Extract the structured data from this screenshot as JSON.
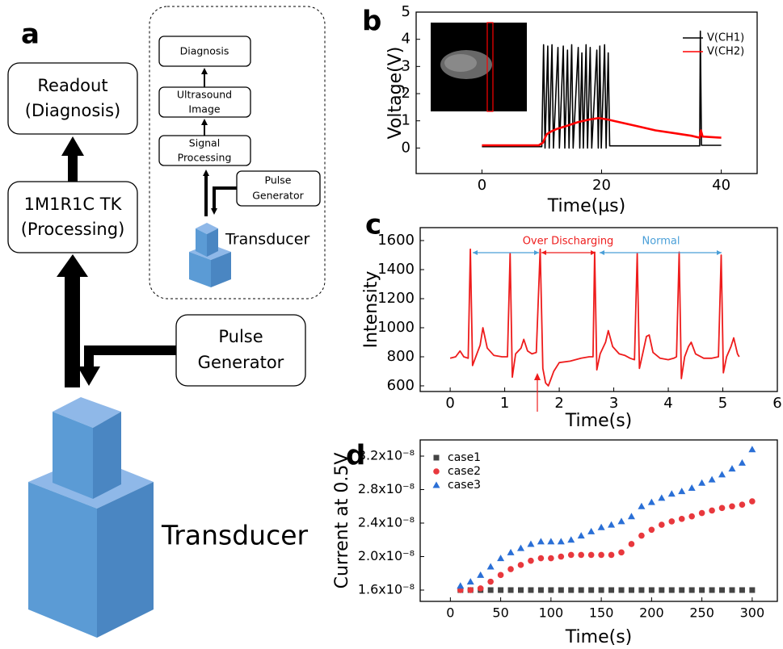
{
  "panel_a": {
    "label": "a",
    "readout": [
      "Readout",
      "(Diagnosis)"
    ],
    "processing": [
      "1M1R1C TK",
      "(Processing)"
    ],
    "pulse_generator": [
      "Pulse",
      "Generator"
    ],
    "transducer": "Transducer",
    "inset": {
      "diagnosis": "Diagnosis",
      "ultrasound_image": [
        "Ultrasound",
        "Image"
      ],
      "signal_processing": [
        "Signal",
        "Processing"
      ],
      "pulse_generator": [
        "Pulse",
        "Generator"
      ],
      "transducer": "Transducer"
    }
  },
  "chart_data": [
    {
      "type": "line",
      "panel_label": "b",
      "xlabel": "Time(µs)",
      "ylabel": "Voltage(V)",
      "xlim": [
        -11,
        46
      ],
      "xticks": [
        0,
        20,
        40
      ],
      "ylim": [
        -0.94,
        5
      ],
      "yticks": [
        0,
        1,
        2,
        3,
        4,
        5
      ],
      "grid": false,
      "legend": "upper right",
      "series": [
        {
          "name": "V(CH1)",
          "color": "#000000",
          "x": [
            0,
            10.0,
            10.3,
            10.55,
            11.0,
            11.25,
            11.7,
            11.95,
            12.7,
            12.95,
            13.6,
            13.85,
            14.3,
            14.55,
            15.0,
            15.25,
            16.1,
            16.35,
            16.7,
            16.95,
            17.4,
            17.65,
            18.1,
            18.35,
            19.2,
            19.45,
            19.7,
            19.95,
            20.5,
            20.75,
            21.1,
            21.35,
            36.4,
            36.5,
            36.7,
            40
          ],
          "values": [
            0.05,
            0.05,
            3.8,
            0.0,
            3.75,
            0.0,
            3.8,
            0.0,
            3.7,
            0.0,
            3.75,
            0.0,
            3.6,
            0.0,
            3.8,
            0.0,
            3.7,
            0.0,
            3.5,
            0.0,
            3.8,
            0.0,
            3.7,
            0.0,
            3.6,
            0.0,
            3.75,
            0.0,
            3.8,
            0.0,
            3.5,
            0.08,
            0.08,
            4.3,
            0.1,
            0.1
          ]
        },
        {
          "name": "V(CH2)",
          "color": "#ff0000",
          "x": [
            0,
            9.5,
            10.2,
            10.8,
            11.5,
            12.5,
            14,
            16,
            18,
            19.5,
            21,
            23,
            26,
            29,
            32,
            35,
            36.4,
            36.6,
            36.9,
            40
          ],
          "values": [
            0.1,
            0.1,
            0.2,
            0.5,
            0.6,
            0.7,
            0.8,
            0.95,
            1.05,
            1.1,
            1.05,
            0.95,
            0.8,
            0.65,
            0.55,
            0.45,
            0.38,
            0.65,
            0.42,
            0.38
          ]
        }
      ]
    },
    {
      "type": "line",
      "panel_label": "c",
      "xlabel": "Time(s)",
      "ylabel": "Intensity",
      "xlim": [
        -0.55,
        6
      ],
      "xticks": [
        0,
        1,
        2,
        3,
        4,
        5,
        6
      ],
      "ylim": [
        561,
        1689
      ],
      "yticks": [
        600,
        800,
        1000,
        1200,
        1400,
        1600
      ],
      "grid": false,
      "color": "#ee1c1c",
      "x": [
        0,
        0.1,
        0.18,
        0.25,
        0.33,
        0.37,
        0.41,
        0.47,
        0.55,
        0.6,
        0.68,
        0.8,
        0.95,
        1.05,
        1.1,
        1.14,
        1.2,
        1.3,
        1.35,
        1.42,
        1.5,
        1.58,
        1.65,
        1.7,
        1.75,
        1.8,
        1.85,
        1.9,
        2.0,
        2.2,
        2.4,
        2.55,
        2.62,
        2.65,
        2.69,
        2.75,
        2.85,
        2.9,
        2.98,
        3.1,
        3.2,
        3.3,
        3.38,
        3.43,
        3.47,
        3.53,
        3.6,
        3.65,
        3.72,
        3.85,
        4.0,
        4.1,
        4.15,
        4.2,
        4.24,
        4.3,
        4.37,
        4.42,
        4.5,
        4.65,
        4.8,
        4.92,
        4.97,
        5.01,
        5.07,
        5.15,
        5.2,
        5.27,
        5.3
      ],
      "values": [
        790,
        800,
        840,
        800,
        790,
        1540,
        740,
        800,
        880,
        1000,
        860,
        810,
        800,
        800,
        1510,
        660,
        820,
        860,
        920,
        840,
        820,
        830,
        1540,
        720,
        620,
        600,
        650,
        700,
        760,
        770,
        790,
        800,
        800,
        1520,
        710,
        820,
        900,
        980,
        870,
        820,
        810,
        790,
        780,
        1510,
        720,
        820,
        940,
        950,
        830,
        790,
        780,
        790,
        800,
        1520,
        650,
        800,
        870,
        900,
        820,
        790,
        790,
        800,
        1500,
        690,
        800,
        870,
        930,
        820,
        800
      ],
      "annotations": [
        {
          "text": "Over Discharging",
          "color": "#ee1c1c"
        },
        {
          "text": "Normal",
          "color": "#4a9fd8"
        }
      ]
    },
    {
      "type": "scatter",
      "panel_label": "d",
      "xlabel": "Time(s)",
      "ylabel": "Current at 0.5V",
      "xlim": [
        -30,
        325
      ],
      "xticks": [
        0,
        50,
        100,
        150,
        200,
        250,
        300
      ],
      "ylim": [
        1.465e-08,
        3.393e-08
      ],
      "yticks": [
        {
          "value": 1.6e-08,
          "label": "1.6x10⁻⁸"
        },
        {
          "value": 2e-08,
          "label": "2.0x10⁻⁸"
        },
        {
          "value": 2.4e-08,
          "label": "2.4x10⁻⁸"
        },
        {
          "value": 2.8e-08,
          "label": "2.8x10⁻⁸"
        },
        {
          "value": 3.2e-08,
          "label": "3.2x10⁻⁸"
        }
      ],
      "grid": false,
      "legend": "upper left",
      "x": [
        10,
        20,
        30,
        40,
        50,
        60,
        70,
        80,
        90,
        100,
        110,
        120,
        130,
        140,
        150,
        160,
        170,
        180,
        190,
        200,
        210,
        220,
        230,
        240,
        250,
        260,
        270,
        280,
        290,
        300
      ],
      "series": [
        {
          "name": "case1",
          "color": "#444444",
          "marker": "square",
          "values": [
            1.6e-08,
            1.6e-08,
            1.6e-08,
            1.6e-08,
            1.6e-08,
            1.6e-08,
            1.6e-08,
            1.6e-08,
            1.6e-08,
            1.6e-08,
            1.6e-08,
            1.6e-08,
            1.6e-08,
            1.6e-08,
            1.6e-08,
            1.6e-08,
            1.6e-08,
            1.6e-08,
            1.6e-08,
            1.6e-08,
            1.6e-08,
            1.6e-08,
            1.6e-08,
            1.6e-08,
            1.6e-08,
            1.6e-08,
            1.6e-08,
            1.6e-08,
            1.6e-08,
            1.6e-08
          ]
        },
        {
          "name": "case2",
          "color": "#e8383d",
          "marker": "circle",
          "values": [
            1.6e-08,
            1.6e-08,
            1.62e-08,
            1.7e-08,
            1.78e-08,
            1.85e-08,
            1.9e-08,
            1.95e-08,
            1.98e-08,
            1.98e-08,
            2e-08,
            2.02e-08,
            2.02e-08,
            2.02e-08,
            2.02e-08,
            2.02e-08,
            2.05e-08,
            2.15e-08,
            2.25e-08,
            2.32e-08,
            2.38e-08,
            2.42e-08,
            2.45e-08,
            2.48e-08,
            2.52e-08,
            2.55e-08,
            2.58e-08,
            2.6e-08,
            2.62e-08,
            2.66e-08
          ]
        },
        {
          "name": "case3",
          "color": "#2a6fd6",
          "marker": "triangle",
          "values": [
            1.65e-08,
            1.7e-08,
            1.78e-08,
            1.88e-08,
            1.98e-08,
            2.05e-08,
            2.1e-08,
            2.15e-08,
            2.18e-08,
            2.18e-08,
            2.18e-08,
            2.2e-08,
            2.25e-08,
            2.3e-08,
            2.35e-08,
            2.38e-08,
            2.42e-08,
            2.48e-08,
            2.6e-08,
            2.65e-08,
            2.7e-08,
            2.75e-08,
            2.78e-08,
            2.82e-08,
            2.88e-08,
            2.92e-08,
            2.98e-08,
            3.05e-08,
            3.12e-08,
            3.28e-08
          ]
        }
      ]
    }
  ]
}
